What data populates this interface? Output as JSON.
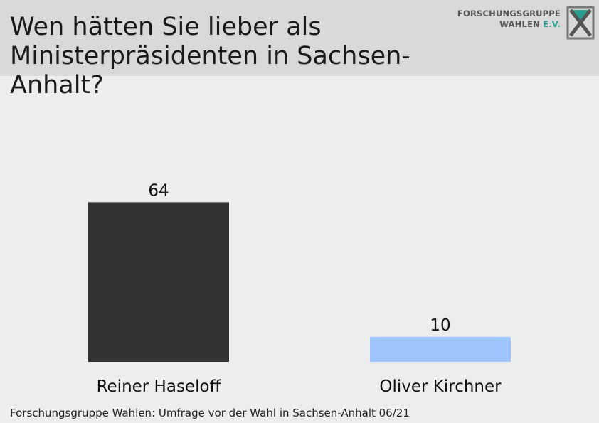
{
  "header": {
    "title": "Wen hätten Sie lieber als Ministerpräsidenten in Sachsen-Anhalt?"
  },
  "logo": {
    "line1": "FORSCHUNGSGRUPPE",
    "line2_main": "WAHLEN",
    "line2_accent": "E.V.",
    "accent_color": "#2a9d8f"
  },
  "chart_data": {
    "type": "bar",
    "title": "Wen hätten Sie lieber als Ministerpräsidenten in Sachsen-Anhalt?",
    "categories": [
      "Reiner Haseloff",
      "Oliver Kirchner"
    ],
    "values": [
      64,
      10
    ],
    "colors": [
      "#333333",
      "#9ec5fe"
    ],
    "data_labels": [
      "64",
      "10"
    ],
    "ylim": [
      0,
      100
    ],
    "grid": false,
    "legend": "none"
  },
  "footer": {
    "source": "Forschungsgruppe Wahlen: Umfrage vor der Wahl in Sachsen-Anhalt 06/21"
  }
}
